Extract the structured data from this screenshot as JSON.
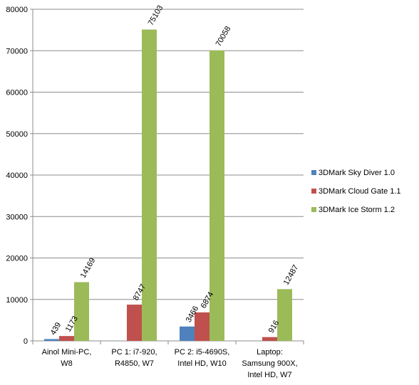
{
  "chart_data": {
    "type": "bar",
    "categories": [
      [
        "Ainol Mini-PC,",
        "W8"
      ],
      [
        "PC 1: i7-920,",
        "R4850, W7"
      ],
      [
        "PC 2: i5-4690S,",
        "Intel HD, W10"
      ],
      [
        "Laptop:",
        "Samsung 900X,",
        "Intel HD, W7"
      ]
    ],
    "series": [
      {
        "name": "3DMark Sky Diver 1.0",
        "color": "#4F81BD",
        "values": [
          439,
          null,
          3466,
          null
        ]
      },
      {
        "name": "3DMark Cloud Gate 1.1",
        "color": "#C0504D",
        "values": [
          1173,
          8747,
          6874,
          916
        ]
      },
      {
        "name": "3DMark Ice Storm 1.2",
        "color": "#9BBB59",
        "values": [
          14169,
          75103,
          70058,
          12487
        ]
      }
    ],
    "ylim": [
      0,
      80000
    ],
    "yticks": [
      0,
      10000,
      20000,
      30000,
      40000,
      50000,
      60000,
      70000,
      80000
    ],
    "grid": true,
    "legend_position": "right"
  }
}
